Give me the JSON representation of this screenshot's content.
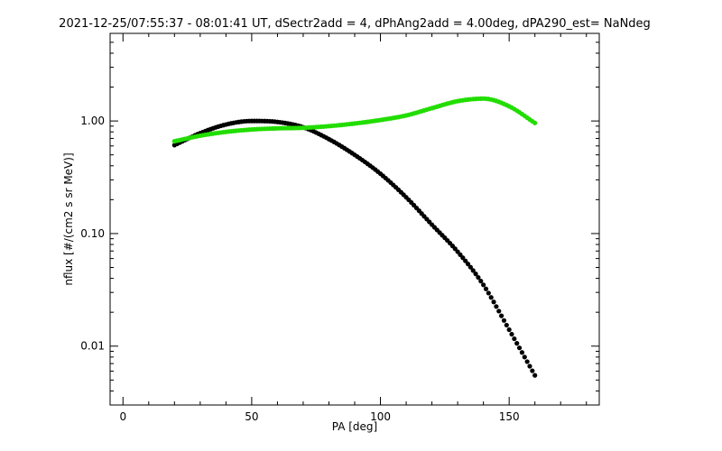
{
  "chart_data": {
    "type": "scatter",
    "title": "2021-12-25/07:55:37 - 08:01:41 UT, dSectr2add = 4, dPhAng2add = 4.00deg, dPA290_est=    NaNdeg",
    "xlabel": "PA [deg]",
    "ylabel": "nflux [#/(cm2 s sr MeV)]",
    "xlim": [
      -5,
      185
    ],
    "ylim": [
      0.003,
      6
    ],
    "yscale": "log",
    "grid": false,
    "x_ticks": [
      0,
      50,
      100,
      150
    ],
    "x_tick_labels": [
      "0",
      "50",
      "100",
      "150"
    ],
    "y_ticks": [
      0.01,
      0.1,
      1.0
    ],
    "y_tick_labels": [
      "0.01",
      "0.10",
      "1.00"
    ],
    "x_minor_step": 10,
    "series": [
      {
        "color": "#000000",
        "x": [
          20,
          30,
          40,
          50,
          60,
          70,
          80,
          90,
          100,
          110,
          120,
          130,
          140,
          150,
          160
        ],
        "y": [
          0.61,
          0.78,
          0.93,
          1.0,
          0.98,
          0.88,
          0.69,
          0.5,
          0.34,
          0.21,
          0.12,
          0.069,
          0.035,
          0.014,
          0.0055
        ]
      },
      {
        "color": "#22dd00",
        "x": [
          20,
          30,
          40,
          50,
          60,
          70,
          80,
          90,
          100,
          110,
          120,
          130,
          140,
          150,
          160
        ],
        "y": [
          0.66,
          0.74,
          0.8,
          0.84,
          0.86,
          0.87,
          0.9,
          0.95,
          1.02,
          1.12,
          1.3,
          1.5,
          1.58,
          1.35,
          0.96
        ]
      }
    ]
  }
}
